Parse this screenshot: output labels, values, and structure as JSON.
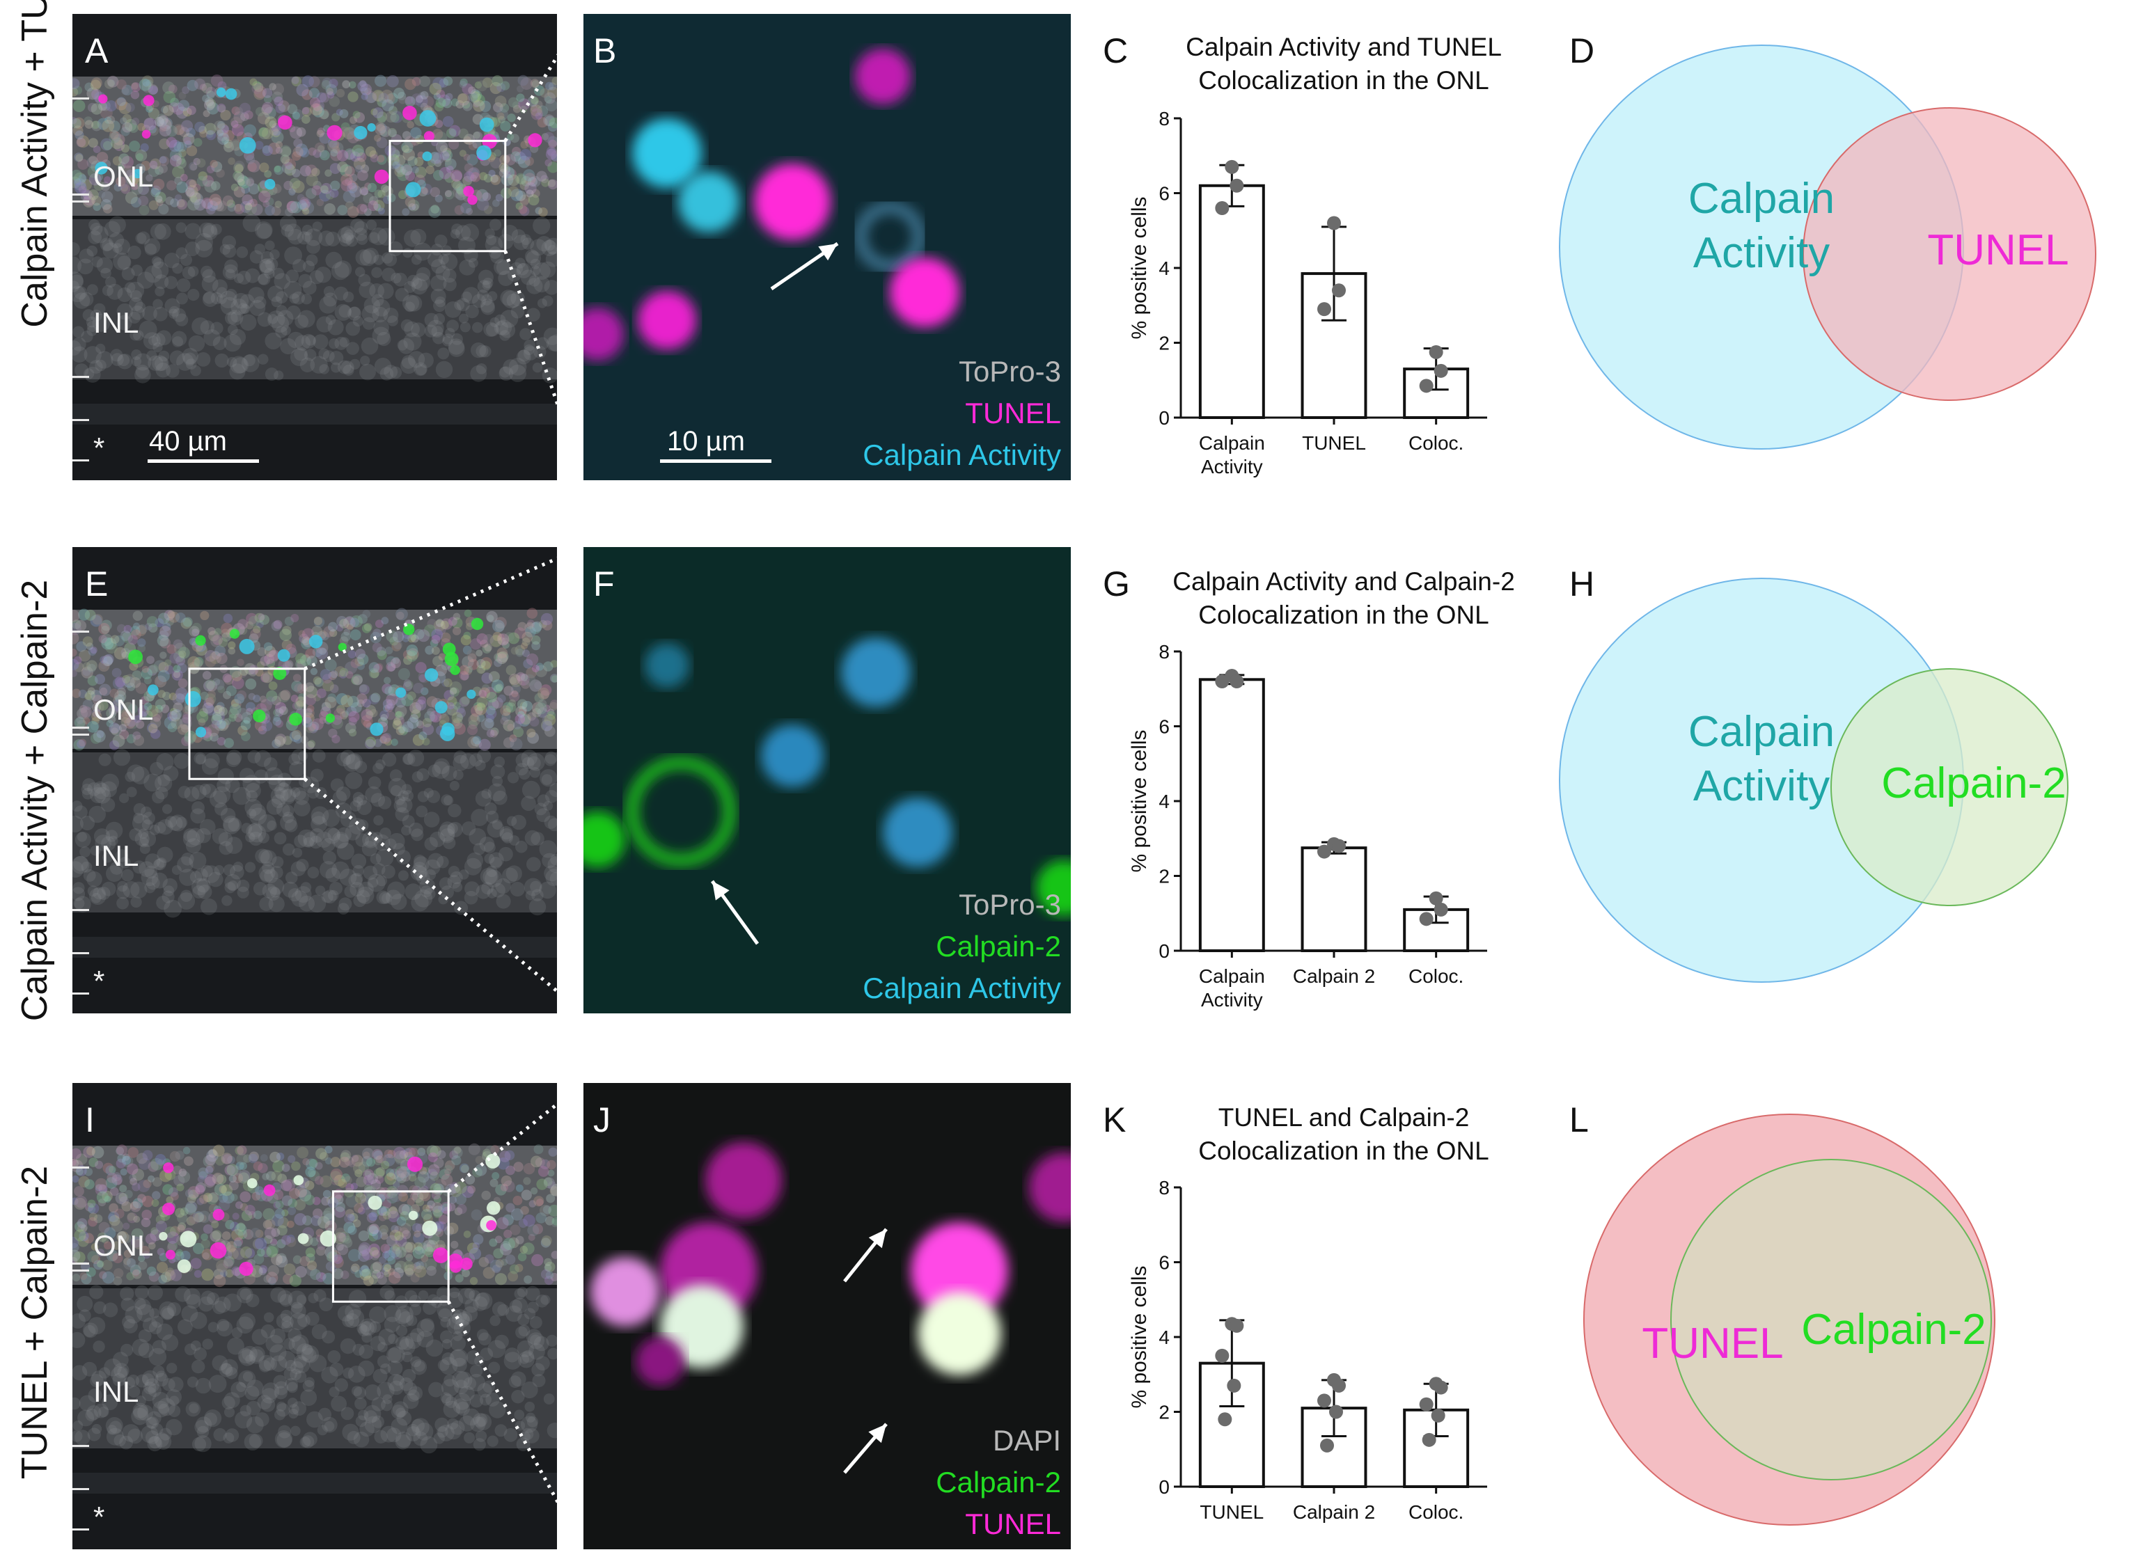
{
  "rows": [
    {
      "row_label": "Calpain Activity + TUNEL",
      "micro": {
        "panel_letter": "A",
        "layers": [
          "ONL",
          "INL",
          "*"
        ],
        "scale_bar": "40 µm",
        "stain_colors": [
          "#3cc8e6",
          "#ff2ad8"
        ]
      },
      "zoom": {
        "panel_letter": "B",
        "scale_bar": "10 µm",
        "legend": [
          {
            "text": "ToPro-3",
            "color": "#b8b8b8"
          },
          {
            "text": "TUNEL",
            "color": "#ff2ad8"
          },
          {
            "text": "Calpain Activity",
            "color": "#2ec7e8"
          }
        ]
      },
      "chart_letter": "C",
      "venn_letter": "D",
      "venn": {
        "left": {
          "label_lines": [
            "Calpain",
            "Activity"
          ],
          "fill": "#c9f2fb",
          "stroke": "#6fb6e8",
          "text_color": "#1fa6a6"
        },
        "right": {
          "label_lines": [
            "TUNEL"
          ],
          "fill": "#f3b7bd",
          "stroke": "#d86a6a",
          "text_color": "#ee2ad6"
        }
      }
    },
    {
      "row_label": "Calpain Activity + Calpain-2",
      "micro": {
        "panel_letter": "E",
        "layers": [
          "ONL",
          "INL",
          "*"
        ],
        "scale_bar": "",
        "stain_colors": [
          "#3cc8e6",
          "#2ee83a"
        ]
      },
      "zoom": {
        "panel_letter": "F",
        "scale_bar": "",
        "legend": [
          {
            "text": "ToPro-3",
            "color": "#b8b8b8"
          },
          {
            "text": "Calpain-2",
            "color": "#22dd22"
          },
          {
            "text": "Calpain Activity",
            "color": "#2ec7e8"
          }
        ]
      },
      "chart_letter": "G",
      "venn_letter": "H",
      "venn": {
        "left": {
          "label_lines": [
            "Calpain",
            "Activity"
          ],
          "fill": "#c9f2fb",
          "stroke": "#6fb6e8",
          "text_color": "#1fa6a6"
        },
        "right": {
          "label_lines": [
            "Calpain-2"
          ],
          "fill": "#d9ecc9",
          "stroke": "#6ab85a",
          "text_color": "#22dd22"
        }
      }
    },
    {
      "row_label": "TUNEL + Calpain-2",
      "micro": {
        "panel_letter": "I",
        "layers": [
          "ONL",
          "INL",
          "*"
        ],
        "scale_bar": "",
        "stain_colors": [
          "#ff2ad8",
          "#e8ffe8"
        ]
      },
      "zoom": {
        "panel_letter": "J",
        "scale_bar": "",
        "legend": [
          {
            "text": "DAPI",
            "color": "#b8b8b8"
          },
          {
            "text": "Calpain-2",
            "color": "#22dd22"
          },
          {
            "text": "TUNEL",
            "color": "#ff2ad8"
          }
        ]
      },
      "chart_letter": "K",
      "venn_letter": "L",
      "venn": {
        "left": {
          "label_lines": [
            "TUNEL"
          ],
          "fill": "#f3b7bd",
          "stroke": "#d86a6a",
          "text_color": "#ee2ad6"
        },
        "right": {
          "label_lines": [
            "Calpain-2"
          ],
          "fill": "#d6dcc0",
          "stroke": "#6ab85a",
          "text_color": "#22dd22"
        }
      }
    }
  ],
  "chart_data": [
    {
      "type": "bar",
      "title": "Calpain Activity and TUNEL Colocalization in the ONL",
      "title_lines": [
        "Calpain Activity and TUNEL",
        "Colocalization in the ONL"
      ],
      "ylabel": "% positive cells",
      "ylim": [
        0,
        8
      ],
      "yticks": [
        0,
        2,
        4,
        6,
        8
      ],
      "categories": [
        [
          "Calpain",
          "Activity"
        ],
        [
          "TUNEL"
        ],
        [
          "Coloc."
        ]
      ],
      "values": [
        6.2,
        3.85,
        1.3
      ],
      "errors": [
        0.55,
        1.25,
        0.55
      ],
      "points": [
        [
          6.7,
          6.2,
          5.6
        ],
        [
          5.2,
          3.4,
          2.9
        ],
        [
          1.75,
          1.25,
          0.85
        ]
      ]
    },
    {
      "type": "bar",
      "title": "Calpain Activity and Calpain-2 Colocalization in the ONL",
      "title_lines": [
        "Calpain Activity and Calpain-2",
        "Colocalization in the ONL"
      ],
      "ylabel": "% positive cells",
      "ylim": [
        0,
        8
      ],
      "yticks": [
        0,
        2,
        4,
        6,
        8
      ],
      "categories": [
        [
          "Calpain",
          "Activity"
        ],
        [
          "Calpain 2"
        ],
        [
          "Coloc."
        ]
      ],
      "values": [
        7.25,
        2.75,
        1.1
      ],
      "errors": [
        0.12,
        0.15,
        0.35
      ],
      "points": [
        [
          7.35,
          7.2,
          7.2
        ],
        [
          2.85,
          2.8,
          2.65
        ],
        [
          1.4,
          1.1,
          0.85
        ]
      ]
    },
    {
      "type": "bar",
      "title": "TUNEL and Calpain-2 Colocalization in the ONL",
      "title_lines": [
        "TUNEL and Calpain-2",
        "Colocalization in the ONL"
      ],
      "ylabel": "% positive cells",
      "ylim": [
        0,
        8
      ],
      "yticks": [
        0,
        2,
        4,
        6,
        8
      ],
      "categories": [
        [
          "TUNEL"
        ],
        [
          "Calpain 2"
        ],
        [
          "Coloc."
        ]
      ],
      "values": [
        3.3,
        2.1,
        2.05
      ],
      "errors": [
        1.15,
        0.75,
        0.7
      ],
      "points": [
        [
          4.35,
          4.3,
          3.5,
          2.7,
          1.8
        ],
        [
          2.85,
          2.7,
          2.3,
          2.0,
          1.1
        ],
        [
          2.75,
          2.65,
          2.2,
          1.9,
          1.25
        ]
      ]
    }
  ]
}
